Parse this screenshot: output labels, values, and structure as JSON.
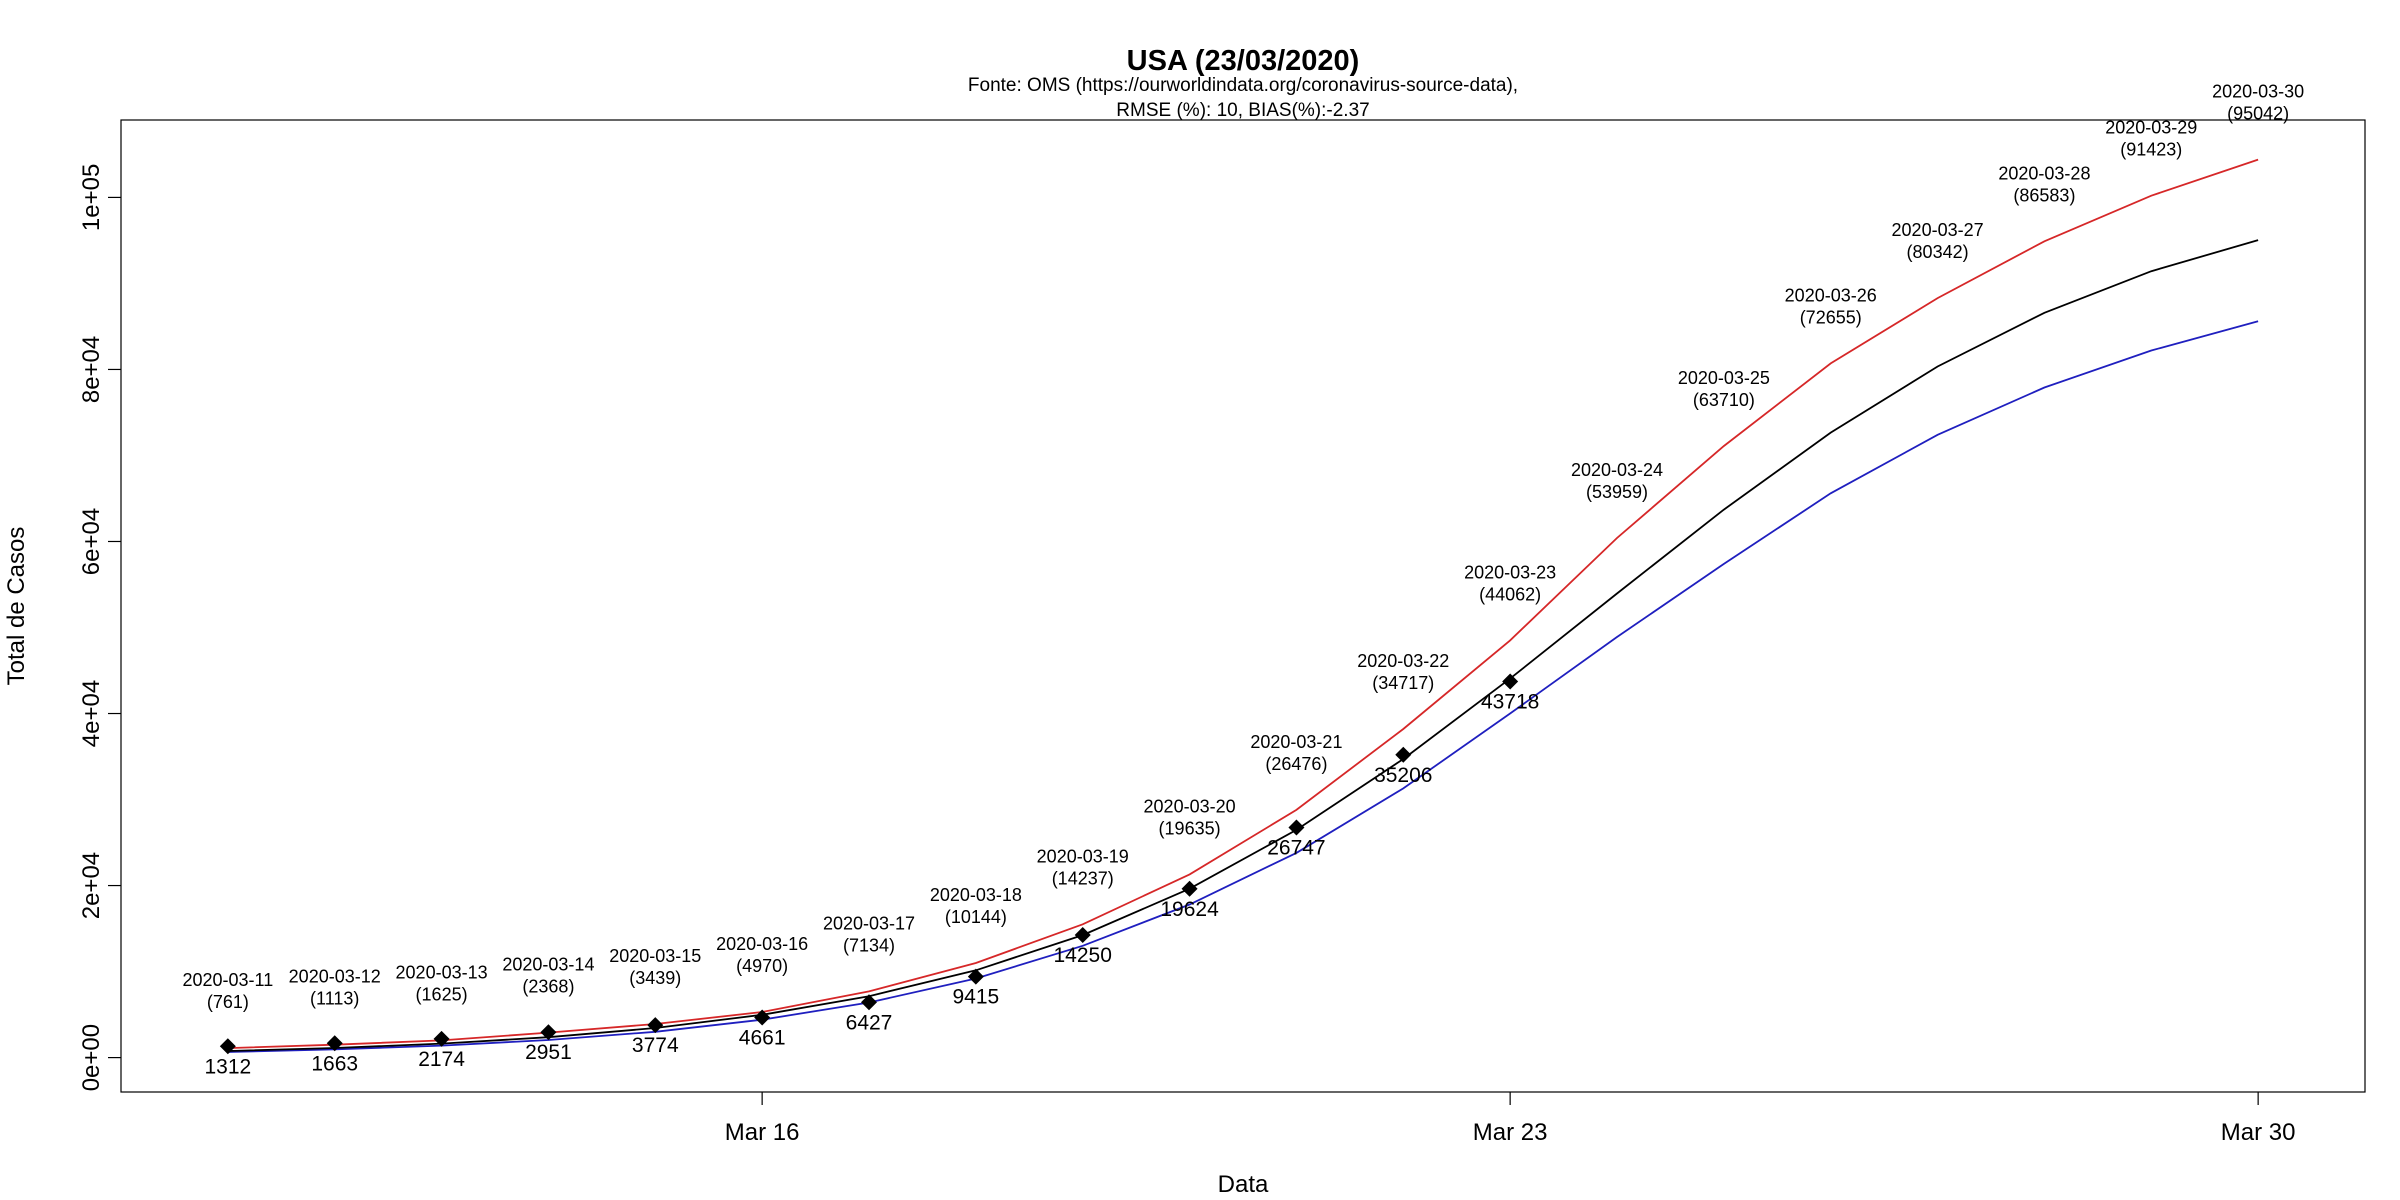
{
  "chart_data": {
    "type": "line",
    "title": "USA (23/03/2020)",
    "subtitle_line1": "Fonte: OMS (https://ourworldindata.org/coronavirus-source-data),",
    "subtitle_line2": "RMSE (%): 10, BIAS(%):-2.37",
    "xlabel": "Data",
    "ylabel": "Total de Casos",
    "x_ticks": [
      {
        "date": "2020-03-16",
        "label": "Mar 16"
      },
      {
        "date": "2020-03-23",
        "label": "Mar 23"
      },
      {
        "date": "2020-03-30",
        "label": "Mar 30"
      }
    ],
    "y_ticks": [
      {
        "value": 0,
        "label": "0e+00"
      },
      {
        "value": 20000,
        "label": "2e+04"
      },
      {
        "value": 40000,
        "label": "4e+04"
      },
      {
        "value": 60000,
        "label": "6e+04"
      },
      {
        "value": 80000,
        "label": "8e+04"
      },
      {
        "value": 100000,
        "label": "1e+05"
      }
    ],
    "xlim": [
      "2020-03-10",
      "2020-03-31"
    ],
    "ylim": [
      -4000,
      109000
    ],
    "grid": false,
    "colors": {
      "estimate": "#000000",
      "upper": "#d62728",
      "lower": "#1f1fbf"
    },
    "dates": [
      "2020-03-11",
      "2020-03-12",
      "2020-03-13",
      "2020-03-14",
      "2020-03-15",
      "2020-03-16",
      "2020-03-17",
      "2020-03-18",
      "2020-03-19",
      "2020-03-20",
      "2020-03-21",
      "2020-03-22",
      "2020-03-23",
      "2020-03-24",
      "2020-03-25",
      "2020-03-26",
      "2020-03-27",
      "2020-03-28",
      "2020-03-29",
      "2020-03-30"
    ],
    "upper": [
      1100,
      1500,
      2000,
      2900,
      3900,
      5300,
      7700,
      11000,
      15500,
      21300,
      28800,
      38200,
      48500,
      60400,
      71100,
      80700,
      88300,
      94900,
      100200,
      104400
    ],
    "estimate": [
      761,
      1113,
      1625,
      2368,
      3439,
      4970,
      7134,
      10144,
      14237,
      19635,
      26476,
      34717,
      44062,
      53959,
      63710,
      72655,
      80342,
      86583,
      91423,
      95042
    ],
    "lower": [
      650,
      950,
      1400,
      2050,
      3000,
      4400,
      6400,
      9200,
      13000,
      17800,
      23800,
      31300,
      40000,
      48900,
      57400,
      65600,
      72400,
      77900,
      82200,
      85600
    ],
    "annotations": [
      {
        "date": "2020-03-11",
        "label": "2020-03-11",
        "value_label": "(761)",
        "value": 761
      },
      {
        "date": "2020-03-12",
        "label": "2020-03-12",
        "value_label": "(1113)",
        "value": 1113
      },
      {
        "date": "2020-03-13",
        "label": "2020-03-13",
        "value_label": "(1625)",
        "value": 1625
      },
      {
        "date": "2020-03-14",
        "label": "2020-03-14",
        "value_label": "(2368)",
        "value": 2368
      },
      {
        "date": "2020-03-15",
        "label": "2020-03-15",
        "value_label": "(3439)",
        "value": 3439
      },
      {
        "date": "2020-03-16",
        "label": "2020-03-16",
        "value_label": "(4970)",
        "value": 4970
      },
      {
        "date": "2020-03-17",
        "label": "2020-03-17",
        "value_label": "(7134)",
        "value": 7134
      },
      {
        "date": "2020-03-18",
        "label": "2020-03-18",
        "value_label": "(10144)",
        "value": 10144
      },
      {
        "date": "2020-03-19",
        "label": "2020-03-19",
        "value_label": "(14237)",
        "value": 14237
      },
      {
        "date": "2020-03-20",
        "label": "2020-03-20",
        "value_label": "(19635)",
        "value": 19635
      },
      {
        "date": "2020-03-21",
        "label": "2020-03-21",
        "value_label": "(26476)",
        "value": 26476
      },
      {
        "date": "2020-03-22",
        "label": "2020-03-22",
        "value_label": "(34717)",
        "value": 34717
      },
      {
        "date": "2020-03-23",
        "label": "2020-03-23",
        "value_label": "(44062)",
        "value": 44062
      },
      {
        "date": "2020-03-24",
        "label": "2020-03-24",
        "value_label": "(53959)",
        "value": 53959
      },
      {
        "date": "2020-03-25",
        "label": "2020-03-25",
        "value_label": "(63710)",
        "value": 63710
      },
      {
        "date": "2020-03-26",
        "label": "2020-03-26",
        "value_label": "(72655)",
        "value": 72655
      },
      {
        "date": "2020-03-27",
        "label": "2020-03-27",
        "value_label": "(80342)",
        "value": 80342
      },
      {
        "date": "2020-03-28",
        "label": "2020-03-28",
        "value_label": "(86583)",
        "value": 86583
      },
      {
        "date": "2020-03-29",
        "label": "2020-03-29",
        "value_label": "(91423)",
        "value": 91423
      },
      {
        "date": "2020-03-30",
        "label": "2020-03-30",
        "value_label": "(95042)",
        "value": 95042
      }
    ],
    "observed": [
      {
        "date": "2020-03-11",
        "value": 1312,
        "label": "1312"
      },
      {
        "date": "2020-03-12",
        "value": 1663,
        "label": "1663"
      },
      {
        "date": "2020-03-13",
        "value": 2174,
        "label": "2174"
      },
      {
        "date": "2020-03-14",
        "value": 2951,
        "label": "2951"
      },
      {
        "date": "2020-03-15",
        "value": 3774,
        "label": "3774"
      },
      {
        "date": "2020-03-16",
        "value": 4661,
        "label": "4661"
      },
      {
        "date": "2020-03-17",
        "value": 6427,
        "label": "6427"
      },
      {
        "date": "2020-03-18",
        "value": 9415,
        "label": "9415"
      },
      {
        "date": "2020-03-19",
        "value": 14250,
        "label": "14250"
      },
      {
        "date": "2020-03-20",
        "value": 19624,
        "label": "19624"
      },
      {
        "date": "2020-03-21",
        "value": 26747,
        "label": "26747"
      },
      {
        "date": "2020-03-22",
        "value": 35206,
        "label": "35206"
      },
      {
        "date": "2020-03-23",
        "value": 43718,
        "label": "43718"
      }
    ]
  }
}
